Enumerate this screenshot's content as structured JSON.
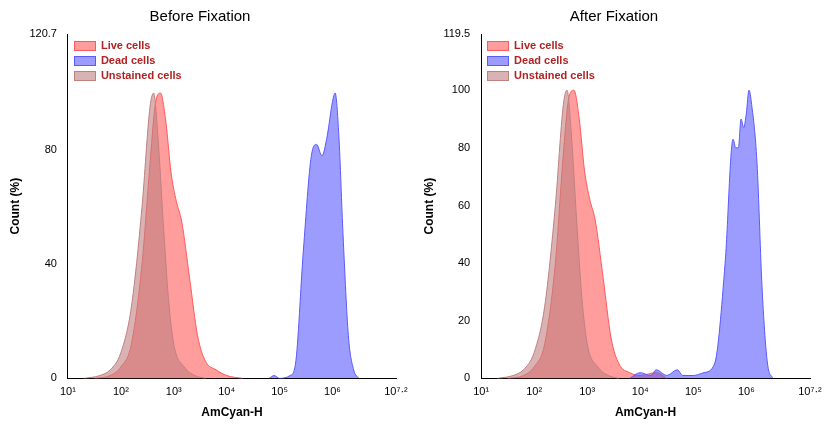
{
  "chart_data": [
    {
      "type": "line",
      "title": "Before Fixation",
      "xlabel": "AmCyan-H",
      "ylabel": "Count (%)",
      "log": "x",
      "legend": "upper left",
      "grid": false,
      "xlim": [
        10,
        15848932
      ],
      "xticks": [
        {
          "value": 10,
          "label": "10¹"
        },
        {
          "value": 100,
          "label": "10²"
        },
        {
          "value": 1000,
          "label": "10³"
        },
        {
          "value": 10000,
          "label": "10⁴"
        },
        {
          "value": 100000,
          "label": "10⁵"
        },
        {
          "value": 1000000,
          "label": "10⁶"
        },
        {
          "value": 15848932,
          "label": "10⁷·²"
        }
      ],
      "ylim": [
        0,
        120.7
      ],
      "yticks": [
        0,
        40,
        80,
        120.7
      ],
      "series": [
        {
          "name": "Live cells",
          "color": "#ff5a5a",
          "x": [
            32,
            63,
            100,
            158,
            251,
            355,
            447,
            562,
            708,
            891,
            1122,
            1413,
            1995,
            2818,
            3981,
            6310,
            10000,
            19953
          ],
          "values": [
            0,
            1,
            4,
            12,
            40,
            75,
            96,
            100,
            90,
            72,
            62,
            55,
            35,
            15,
            6,
            3,
            1,
            0
          ]
        },
        {
          "name": "Dead cells",
          "color": "#5a5aff",
          "x": [
            63096,
            79433,
            100000,
            158489,
            199526,
            281838,
            398107,
            501187,
            630957,
            794328,
            1000000,
            1122018,
            1318257,
            1584893,
            1995262,
            2511886,
            3162278
          ],
          "values": [
            0,
            1,
            0,
            1,
            5,
            45,
            78,
            82,
            78,
            85,
            97,
            100,
            85,
            50,
            15,
            3,
            0
          ]
        },
        {
          "name": "Unstained cells",
          "color": "#c08080",
          "x": [
            20,
            40,
            63,
            100,
            158,
            251,
            355,
            417,
            501,
            631,
            794,
            1000,
            1585,
            2512,
            3981
          ],
          "values": [
            0,
            1,
            3,
            9,
            25,
            60,
            95,
            100,
            85,
            55,
            28,
            12,
            4,
            1,
            0
          ]
        }
      ]
    },
    {
      "type": "line",
      "title": "After Fixation",
      "xlabel": "AmCyan-H",
      "ylabel": "Count (%)",
      "log": "x",
      "legend": "upper left",
      "grid": false,
      "xlim": [
        10,
        15848932
      ],
      "xticks": [
        {
          "value": 10,
          "label": "10¹"
        },
        {
          "value": 100,
          "label": "10²"
        },
        {
          "value": 1000,
          "label": "10³"
        },
        {
          "value": 10000,
          "label": "10⁴"
        },
        {
          "value": 100000,
          "label": "10⁵"
        },
        {
          "value": 1000000,
          "label": "10⁶"
        },
        {
          "value": 15848932,
          "label": "10⁷·²"
        }
      ],
      "ylim": [
        0,
        119.5
      ],
      "yticks": [
        0,
        20,
        40,
        60,
        80,
        100,
        119.5
      ],
      "series": [
        {
          "name": "Live cells",
          "color": "#ff5a5a",
          "x": [
            32,
            63,
            100,
            158,
            251,
            355,
            447,
            562,
            708,
            891,
            1122,
            1413,
            1995,
            2818,
            3981,
            6310,
            10000,
            19953,
            31623
          ],
          "values": [
            0,
            1,
            4,
            12,
            40,
            78,
            97,
            100,
            90,
            72,
            62,
            55,
            35,
            14,
            5,
            2,
            1,
            2,
            0
          ]
        },
        {
          "name": "Dead cells",
          "color": "#5a5aff",
          "x": [
            6310,
            10000,
            15849,
            19953,
            31623,
            50119,
            63096,
            100000,
            158489,
            251189,
            398107,
            562341,
            630957,
            707946,
            794328,
            891251,
            1000000,
            1122018,
            1258925,
            1584893,
            1995262,
            2511886,
            3162278
          ],
          "values": [
            0,
            2,
            1,
            3,
            1,
            3,
            1,
            1,
            2,
            5,
            40,
            83,
            80,
            80,
            90,
            87,
            92,
            100,
            95,
            75,
            30,
            5,
            0
          ]
        },
        {
          "name": "Unstained cells",
          "color": "#c08080",
          "x": [
            20,
            40,
            63,
            100,
            158,
            251,
            355,
            417,
            501,
            631,
            794,
            1000,
            1585,
            2512,
            3981
          ],
          "values": [
            0,
            1,
            3,
            9,
            25,
            60,
            95,
            100,
            85,
            55,
            28,
            12,
            4,
            1,
            0
          ]
        }
      ]
    }
  ]
}
